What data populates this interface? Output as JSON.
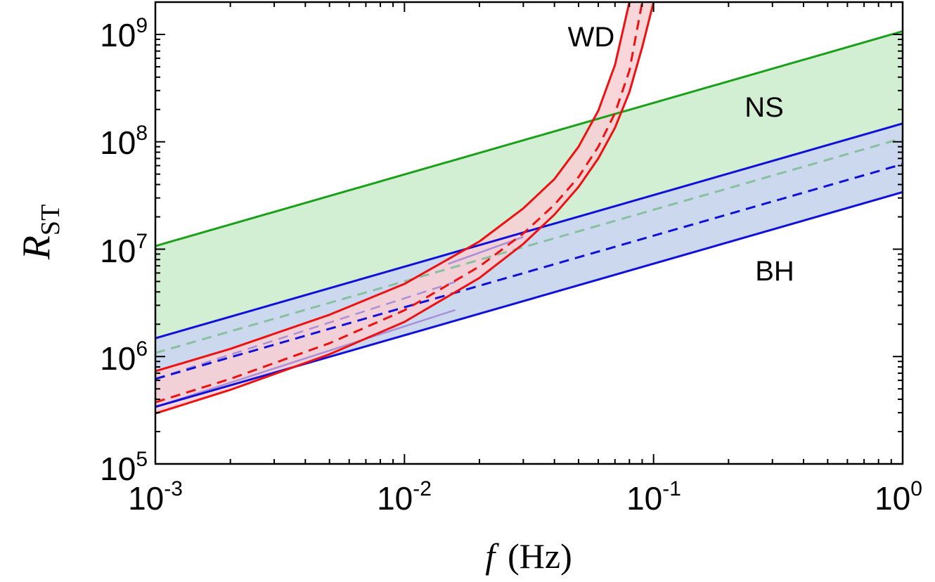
{
  "chart_data": {
    "type": "line",
    "title": "",
    "xlabel": {
      "symbol": "f",
      "unit": "(Hz)"
    },
    "ylabel": {
      "symbol": "R",
      "subscript": "ST"
    },
    "xscale": "log",
    "yscale": "log",
    "xlim": [
      0.001,
      1
    ],
    "ylim": [
      100000,
      2000000000
    ],
    "xticks": [
      {
        "base": "10",
        "exp": "-3",
        "value": 0.001
      },
      {
        "base": "10",
        "exp": "-2",
        "value": 0.01
      },
      {
        "base": "10",
        "exp": "-1",
        "value": 0.1
      },
      {
        "base": "10",
        "exp": "0",
        "value": 1
      }
    ],
    "yticks": [
      {
        "base": "10",
        "exp": "5",
        "value": 100000
      },
      {
        "base": "10",
        "exp": "6",
        "value": 1000000
      },
      {
        "base": "10",
        "exp": "7",
        "value": 10000000
      },
      {
        "base": "10",
        "exp": "8",
        "value": 100000000
      },
      {
        "base": "10",
        "exp": "9",
        "value": 1000000000
      }
    ],
    "bands": [
      {
        "name": "NS",
        "fill": "#d3efd3",
        "upper": {
          "x": [
            0.001,
            1
          ],
          "y": [
            10700000,
            1070000000
          ],
          "color": "#1aa01a",
          "style": "solid"
        },
        "lower": {
          "x": [
            0.001,
            1
          ],
          "y": [
            1480000,
            148000000
          ]
        },
        "median": {
          "x": [
            0.001,
            1
          ],
          "y": [
            1080000,
            108000000
          ],
          "color": "#88c0a0",
          "style": "dashed"
        }
      },
      {
        "name": "BH",
        "fill": "#cbd8ee",
        "upper": {
          "x": [
            0.001,
            1
          ],
          "y": [
            1480000,
            148000000
          ],
          "color": "#1010d8",
          "style": "solid"
        },
        "lower": {
          "x": [
            0.001,
            1
          ],
          "y": [
            340000,
            34000000
          ],
          "color": "#1010d8",
          "style": "solid"
        },
        "median": {
          "x": [
            0.001,
            1
          ],
          "y": [
            620000,
            62000000
          ],
          "color": "#1010d8",
          "style": "dashed"
        }
      },
      {
        "name": "WD",
        "fill": "#f8cfd3",
        "fill_opacity": 0.85,
        "upper": {
          "x": [
            0.001,
            0.002,
            0.005,
            0.01,
            0.02,
            0.03,
            0.04,
            0.05,
            0.06,
            0.07,
            0.08
          ],
          "y": [
            730000,
            1180000,
            2450000,
            4750000,
            11800000,
            24000000,
            45000000,
            90000000,
            195000000,
            520000000,
            2000000000
          ],
          "color": "#ee1111",
          "style": "solid"
        },
        "median": {
          "x": [
            0.001,
            0.002,
            0.005,
            0.01,
            0.02,
            0.03,
            0.04,
            0.05,
            0.06,
            0.07,
            0.08,
            0.09
          ],
          "y": [
            375000,
            620000,
            1330000,
            2700000,
            6900000,
            14000000,
            26000000,
            47000000,
            90000000,
            185000000,
            460000000,
            2000000000
          ],
          "color": "#ee1111",
          "style": "dashed"
        },
        "lower": {
          "x": [
            0.001,
            0.002,
            0.005,
            0.01,
            0.02,
            0.03,
            0.04,
            0.05,
            0.06,
            0.07,
            0.08,
            0.09,
            0.1
          ],
          "y": [
            295000,
            490000,
            1050000,
            2100000,
            5400000,
            11200000,
            21000000,
            38000000,
            70000000,
            135000000,
            290000000,
            760000000,
            2000000000
          ],
          "color": "#ee1111",
          "style": "solid"
        }
      }
    ],
    "overlay_lines": [
      {
        "x": [
          0.001,
          0.016
        ],
        "y": [
          340000,
          2720000
        ],
        "color": "#a890d8",
        "style": "solid"
      },
      {
        "x": [
          0.001,
          0.016
        ],
        "y": [
          620000,
          4960000
        ],
        "color": "#a890d8",
        "style": "dashed"
      },
      {
        "x": [
          0.015,
          0.03
        ],
        "y": [
          7300000,
          13000000
        ],
        "color": "#a890d8",
        "style": "solid"
      }
    ],
    "annotations": [
      {
        "text": "WD",
        "x": 0.045,
        "y": 1000000000
      },
      {
        "text": "NS",
        "x": 0.28,
        "y": 160000000
      },
      {
        "text": "BH",
        "x": 0.29,
        "y": 3800000
      }
    ],
    "legend": "none",
    "grid": false
  }
}
